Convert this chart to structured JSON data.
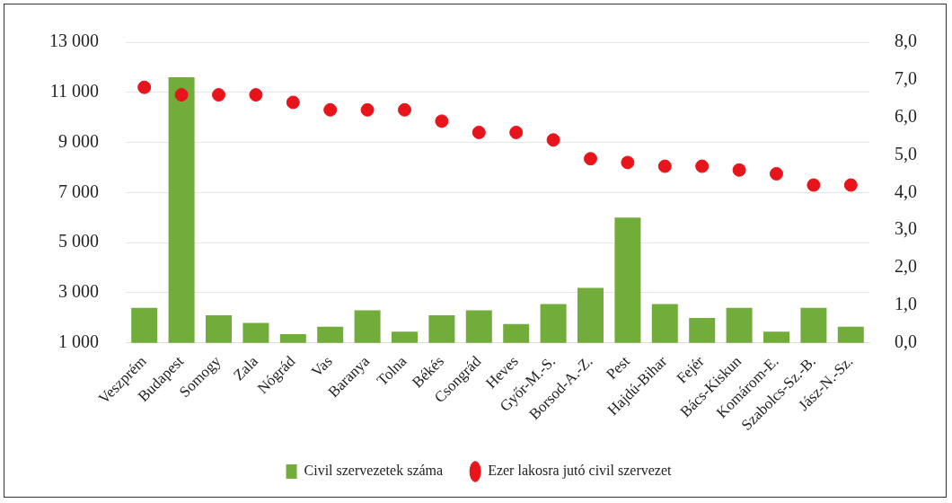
{
  "chart_data": {
    "type": "bar",
    "categories": [
      "Veszprém",
      "Budapest",
      "Somogy",
      "Zala",
      "Nógrád",
      "Vas",
      "Baranya",
      "Tolna",
      "Békés",
      "Csongrád",
      "Heves",
      "Győr-M.-S.",
      "Borsod-A.-Z.",
      "Pest",
      "Hajdú-Bihar",
      "Fejér",
      "Bács-Kiskun",
      "Komárom-E.",
      "Szabolcs-Sz.-B.",
      "Jász-N.-Sz."
    ],
    "series": [
      {
        "name": "Civil szervezetek száma",
        "color": "#72ac3a",
        "values": [
          2400,
          11600,
          2100,
          1800,
          1350,
          1650,
          2300,
          1450,
          2100,
          2300,
          1750,
          2550,
          3200,
          6000,
          2550,
          2000,
          2400,
          1450,
          2400,
          1650
        ]
      },
      {
        "name": "Ezer lakosra jutó civil szervezet",
        "type": "scatter",
        "axis": "y2",
        "color": "#e8141b",
        "values": [
          6.8,
          6.6,
          6.6,
          6.6,
          6.4,
          6.2,
          6.2,
          6.2,
          5.9,
          5.6,
          5.6,
          5.4,
          4.9,
          4.8,
          4.7,
          4.7,
          4.6,
          4.5,
          4.2,
          4.2
        ]
      }
    ],
    "ylim": [
      1000,
      13000
    ],
    "yticks": [
      {
        "value": 1000,
        "label": "1 000"
      },
      {
        "value": 3000,
        "label": "3 000"
      },
      {
        "value": 5000,
        "label": "5 000"
      },
      {
        "value": 7000,
        "label": "7 000"
      },
      {
        "value": 9000,
        "label": "9 000"
      },
      {
        "value": 11000,
        "label": "11 000"
      },
      {
        "value": 13000,
        "label": "13 000"
      }
    ],
    "y2lim": [
      0,
      8
    ],
    "y2ticks": [
      {
        "value": 0,
        "label": "0,0"
      },
      {
        "value": 1,
        "label": "1,0"
      },
      {
        "value": 2,
        "label": "2,0"
      },
      {
        "value": 3,
        "label": "3,0"
      },
      {
        "value": 4,
        "label": "4,0"
      },
      {
        "value": 5,
        "label": "5,0"
      },
      {
        "value": 6,
        "label": "6,0"
      },
      {
        "value": 7,
        "label": "7,0"
      },
      {
        "value": 8,
        "label": "8,0"
      }
    ],
    "grid": "y",
    "legend": "bottom",
    "marker": "circle"
  }
}
